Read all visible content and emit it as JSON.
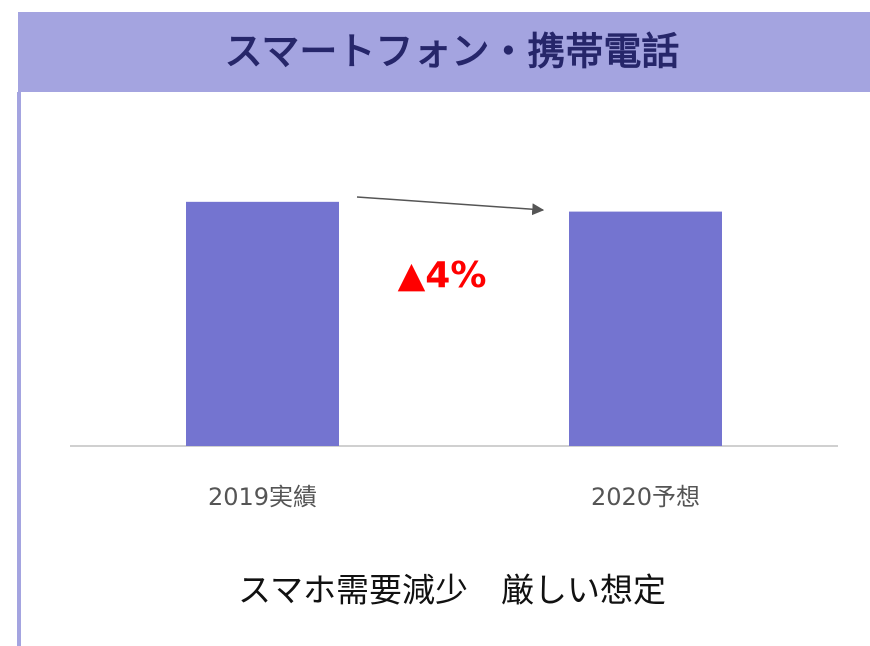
{
  "chart_data": {
    "type": "bar",
    "title": "スマートフォン・携帯電話",
    "categories": [
      "2019実績",
      "2020予想"
    ],
    "values": [
      100,
      96
    ],
    "color": "#7474d0",
    "ylim": [
      0,
      120
    ],
    "annotation": "▲4%",
    "caption": "スマホ需要減少　厳しい想定"
  }
}
